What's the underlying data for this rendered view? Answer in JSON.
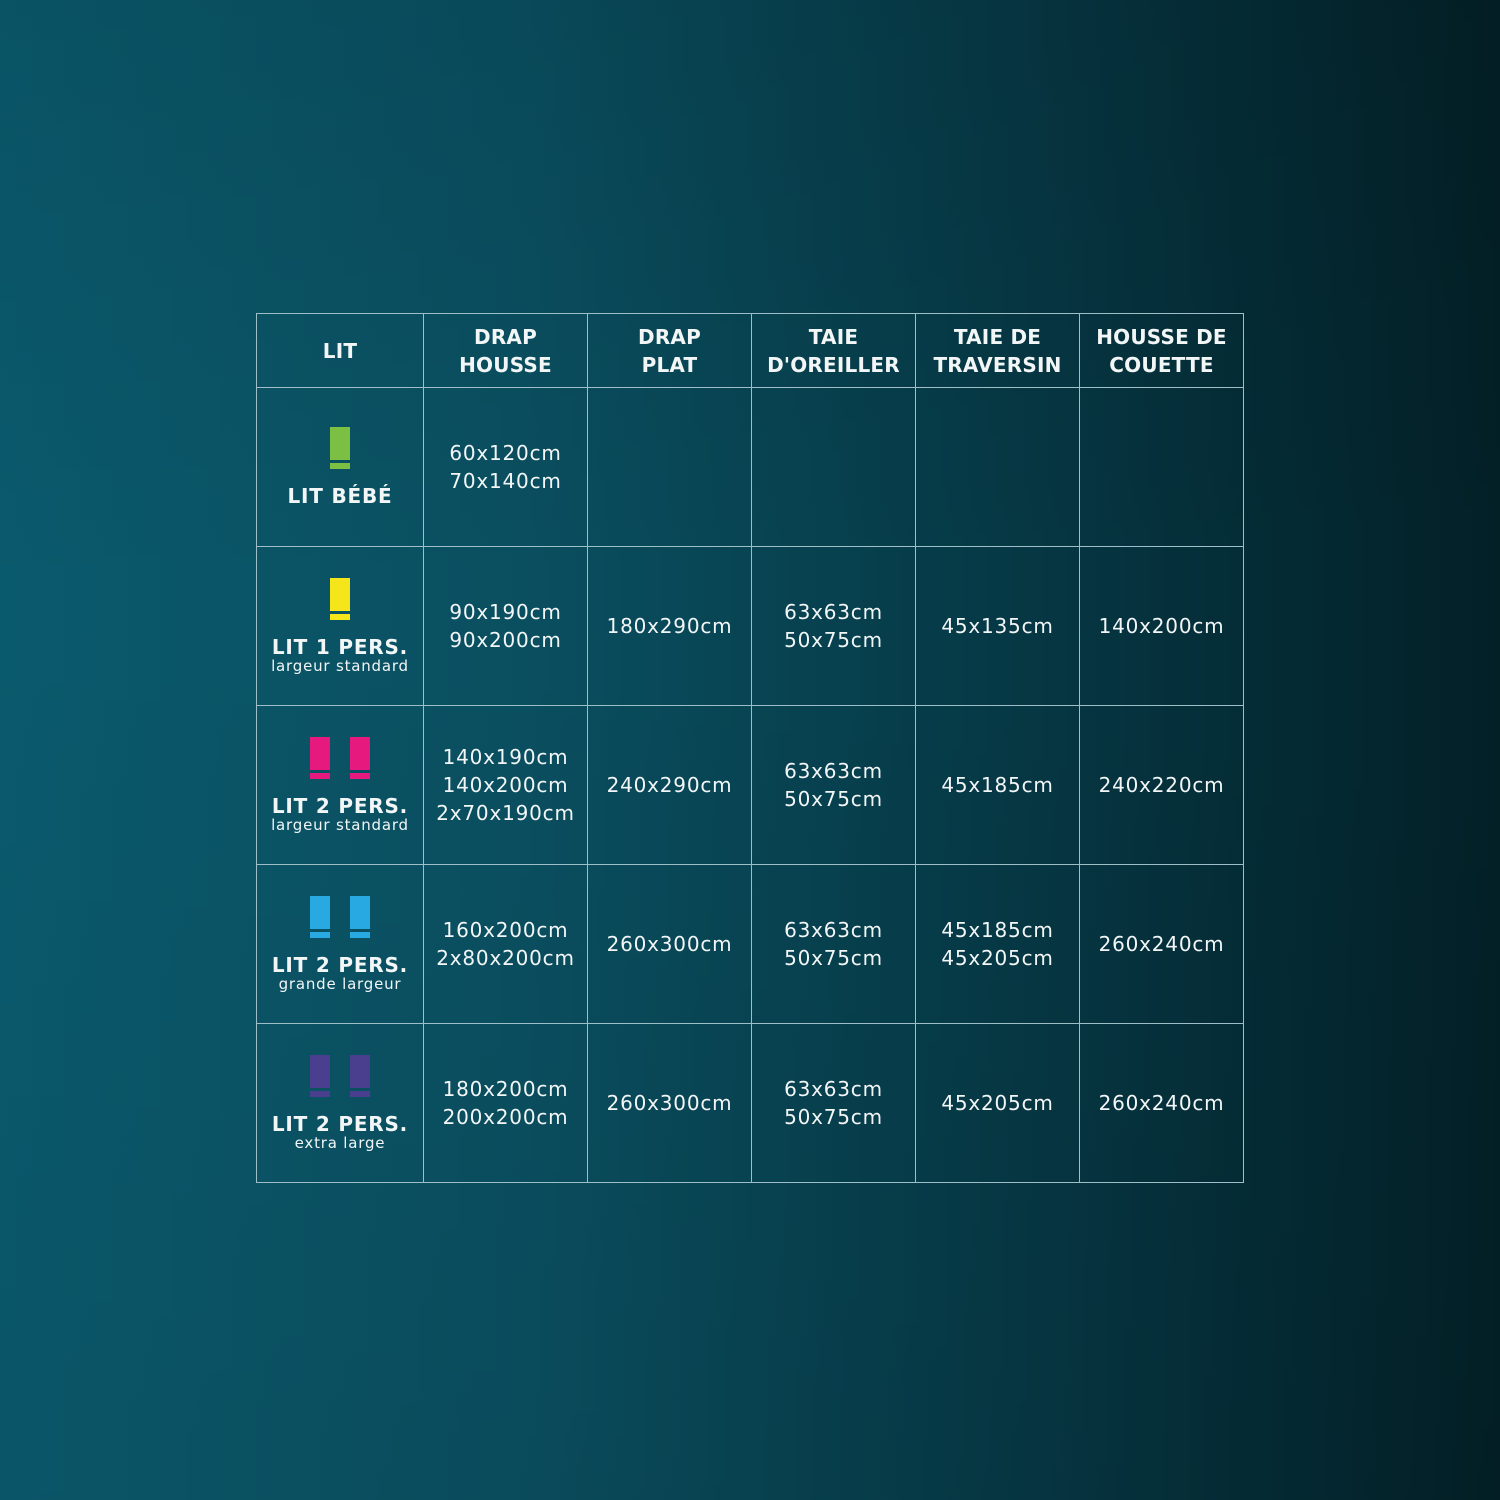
{
  "headers": [
    {
      "l1": "LIT",
      "l2": ""
    },
    {
      "l1": "DRAP",
      "l2": "HOUSSE"
    },
    {
      "l1": "DRAP",
      "l2": "PLAT"
    },
    {
      "l1": "TAIE",
      "l2": "D'OREILLER"
    },
    {
      "l1": "TAIE DE",
      "l2": "TRAVERSIN"
    },
    {
      "l1": "HOUSSE DE",
      "l2": "COUETTE"
    }
  ],
  "rows": [
    {
      "name": "LIT BÉBÉ",
      "sub": "",
      "icon": "single-bed-icon",
      "color": "#7bc043",
      "count": 1,
      "cells": [
        [
          "60x120cm",
          "70x140cm"
        ],
        [],
        [],
        [],
        []
      ]
    },
    {
      "name": "LIT 1 PERS.",
      "sub": "largeur standard",
      "icon": "single-bed-icon",
      "color": "#f5e51b",
      "count": 1,
      "cells": [
        [
          "90x190cm",
          "90x200cm"
        ],
        [
          "180x290cm"
        ],
        [
          "63x63cm",
          "50x75cm"
        ],
        [
          "45x135cm"
        ],
        [
          "140x200cm"
        ]
      ]
    },
    {
      "name": "LIT 2 PERS.",
      "sub": "largeur standard",
      "icon": "double-bed-icon",
      "color": "#e5197e",
      "count": 2,
      "cells": [
        [
          "140x190cm",
          "140x200cm",
          "2x70x190cm"
        ],
        [
          "240x290cm"
        ],
        [
          "63x63cm",
          "50x75cm"
        ],
        [
          "45x185cm"
        ],
        [
          "240x220cm"
        ]
      ]
    },
    {
      "name": "LIT 2 PERS.",
      "sub": "grande largeur",
      "icon": "double-bed-icon",
      "color": "#29a9e1",
      "count": 2,
      "cells": [
        [
          "160x200cm",
          "2x80x200cm"
        ],
        [
          "260x300cm"
        ],
        [
          "63x63cm",
          "50x75cm"
        ],
        [
          "45x185cm",
          "45x205cm"
        ],
        [
          "260x240cm"
        ]
      ]
    },
    {
      "name": "LIT 2 PERS.",
      "sub": "extra large",
      "icon": "double-bed-icon",
      "color": "#4a3f8f",
      "count": 2,
      "cells": [
        [
          "180x200cm",
          "200x200cm"
        ],
        [
          "260x300cm"
        ],
        [
          "63x63cm",
          "50x75cm"
        ],
        [
          "45x205cm"
        ],
        [
          "260x240cm"
        ]
      ]
    }
  ]
}
